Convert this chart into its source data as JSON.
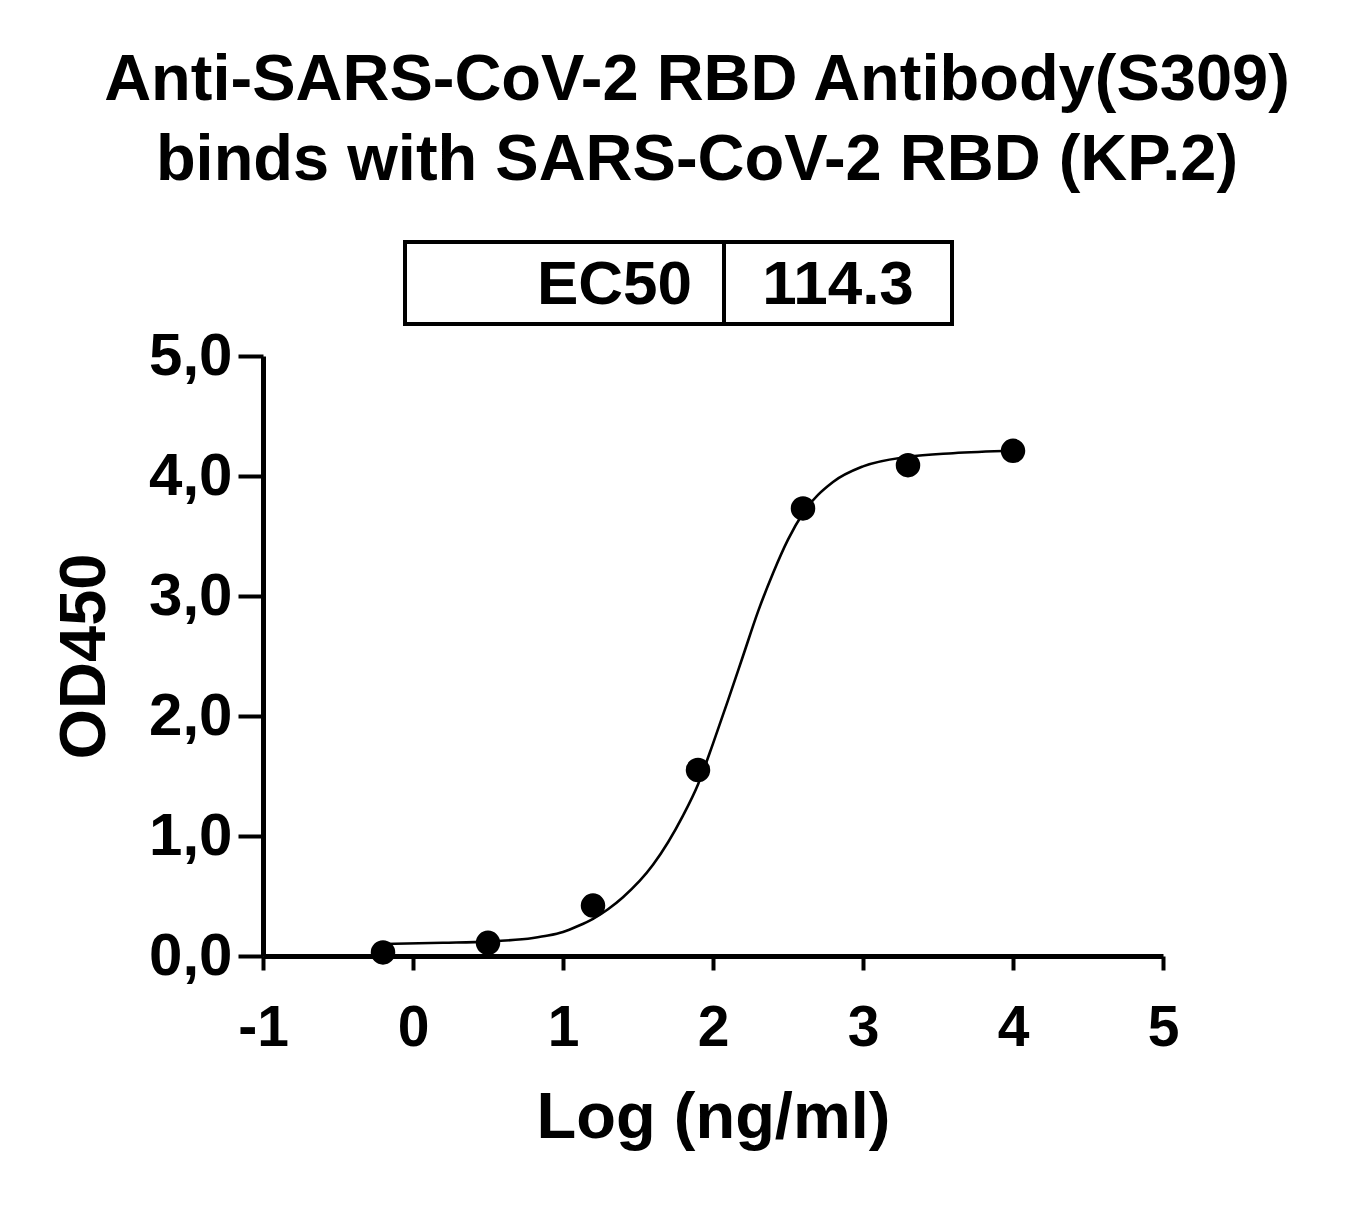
{
  "chart_data": {
    "type": "scatter",
    "title": "Anti-SARS-CoV-2 RBD Antibody(S309) binds with SARS-CoV-2 RBD (KP.2)",
    "xlabel": "Log (ng/ml)",
    "ylabel": "OD450",
    "annotations": [
      "EC50",
      "114.3"
    ],
    "xlim": [
      -1,
      5
    ],
    "xticks": [
      -1,
      0,
      1,
      2,
      3,
      4,
      5
    ],
    "ylim": [
      0,
      5
    ],
    "yticks": [
      {
        "value": 0,
        "label": "0,0"
      },
      {
        "value": 1,
        "label": "1,0"
      },
      {
        "value": 2,
        "label": "2,0"
      },
      {
        "value": 3,
        "label": "3,0"
      },
      {
        "value": 4,
        "label": "4,0"
      },
      {
        "value": 5,
        "label": "5,0"
      }
    ],
    "line_style": "solid",
    "series": [
      {
        "color": "#000000",
        "marker": "circle",
        "x": [
          -0.2,
          0.5,
          1.2,
          1.9,
          2.6,
          3.3,
          4.0
        ],
        "values": [
          0.03,
          0.11,
          0.42,
          1.55,
          3.73,
          4.09,
          4.21
        ]
      },
      {
        "type": "line",
        "color": "#000000",
        "marker": "none",
        "x": [
          -0.2,
          0.2,
          0.5,
          0.8,
          0.9,
          1.0,
          1.1,
          1.2,
          1.3,
          1.4,
          1.6,
          1.8,
          1.9,
          2.0,
          2.1,
          2.2,
          2.3,
          2.4,
          2.5,
          2.6,
          2.8,
          3.0,
          3.3,
          3.6,
          4.0
        ],
        "values": [
          0.1,
          0.11,
          0.12,
          0.15,
          0.17,
          0.2,
          0.25,
          0.31,
          0.39,
          0.49,
          0.76,
          1.17,
          1.43,
          1.77,
          2.13,
          2.5,
          2.87,
          3.19,
          3.47,
          3.69,
          3.95,
          4.08,
          4.16,
          4.19,
          4.21
        ]
      }
    ]
  }
}
